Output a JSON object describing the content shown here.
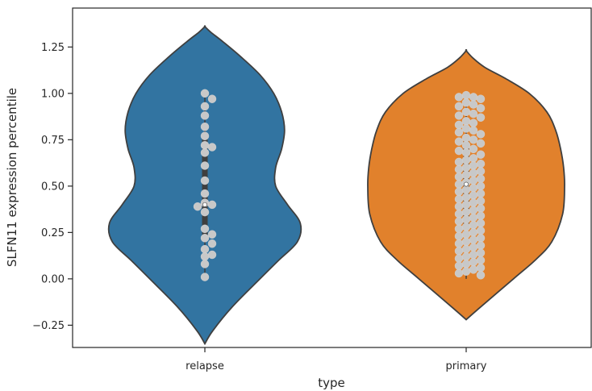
{
  "chart_data": {
    "type": "violin",
    "xlabel": "type",
    "ylabel": "SLFN11 expression percentile",
    "categories": [
      "relapse",
      "primary"
    ],
    "ylim": [
      -0.37,
      1.46
    ],
    "yticks": [
      -0.25,
      0.0,
      0.25,
      0.5,
      0.75,
      1.0,
      1.25
    ],
    "ytick_labels": [
      "−0.25",
      "0.00",
      "0.25",
      "0.50",
      "0.75",
      "1.00",
      "1.25"
    ],
    "grid": false,
    "legend": "none",
    "colors": {
      "relapse": "#3274a1",
      "primary": "#e1812c",
      "points": "#c8c8c8",
      "edge": "#3f3f3f"
    },
    "series": [
      {
        "category": "relapse",
        "min": -0.35,
        "max": 1.36,
        "median": 0.4,
        "q1": 0.21,
        "q3": 0.78,
        "points": [
          1.0,
          0.97,
          0.93,
          0.88,
          0.82,
          0.77,
          0.72,
          0.71,
          0.68,
          0.61,
          0.53,
          0.46,
          0.41,
          0.4,
          0.39,
          0.36,
          0.27,
          0.24,
          0.22,
          0.19,
          0.16,
          0.13,
          0.12,
          0.08,
          0.01
        ]
      },
      {
        "category": "primary",
        "min": -0.22,
        "max": 1.23,
        "median": 0.51,
        "q1": 0.28,
        "q3": 0.74,
        "points": [
          0.99,
          0.98,
          0.98,
          0.97,
          0.95,
          0.94,
          0.93,
          0.92,
          0.9,
          0.89,
          0.88,
          0.87,
          0.85,
          0.84,
          0.83,
          0.81,
          0.8,
          0.79,
          0.78,
          0.76,
          0.75,
          0.74,
          0.73,
          0.72,
          0.7,
          0.69,
          0.68,
          0.67,
          0.65,
          0.64,
          0.63,
          0.62,
          0.61,
          0.6,
          0.59,
          0.58,
          0.57,
          0.56,
          0.55,
          0.54,
          0.53,
          0.52,
          0.51,
          0.5,
          0.49,
          0.48,
          0.47,
          0.46,
          0.45,
          0.44,
          0.43,
          0.42,
          0.41,
          0.4,
          0.39,
          0.38,
          0.37,
          0.36,
          0.35,
          0.34,
          0.33,
          0.32,
          0.31,
          0.3,
          0.29,
          0.28,
          0.27,
          0.26,
          0.25,
          0.24,
          0.23,
          0.22,
          0.21,
          0.2,
          0.19,
          0.18,
          0.17,
          0.16,
          0.15,
          0.14,
          0.13,
          0.12,
          0.11,
          0.1,
          0.09,
          0.08,
          0.07,
          0.06,
          0.05,
          0.04,
          0.03,
          0.02
        ]
      }
    ]
  }
}
